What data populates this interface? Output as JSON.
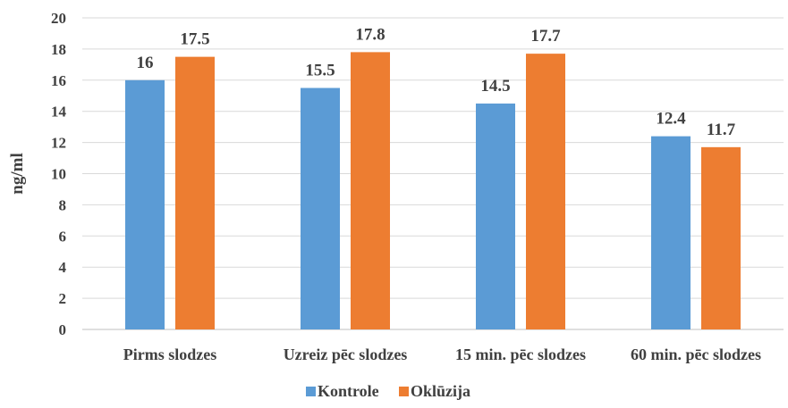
{
  "chart_data": {
    "type": "bar",
    "title": "",
    "xlabel": "",
    "ylabel": "ng/ml",
    "ylim": [
      0,
      20
    ],
    "yticks": [
      0,
      2,
      4,
      6,
      8,
      10,
      12,
      14,
      16,
      18,
      20
    ],
    "grid": true,
    "legend_position": "bottom",
    "categories": [
      "Pirms slodzes",
      "Uzreiz pēc slodzes",
      "15 min. pēc slodzes",
      "60 min. pēc slodzes"
    ],
    "series": [
      {
        "name": "Kontrole",
        "color": "#5b9bd5",
        "values": [
          16,
          15.5,
          14.5,
          12.4
        ]
      },
      {
        "name": "Oklūzija",
        "color": "#ed7d31",
        "values": [
          17.5,
          17.8,
          17.7,
          11.7
        ]
      }
    ]
  }
}
